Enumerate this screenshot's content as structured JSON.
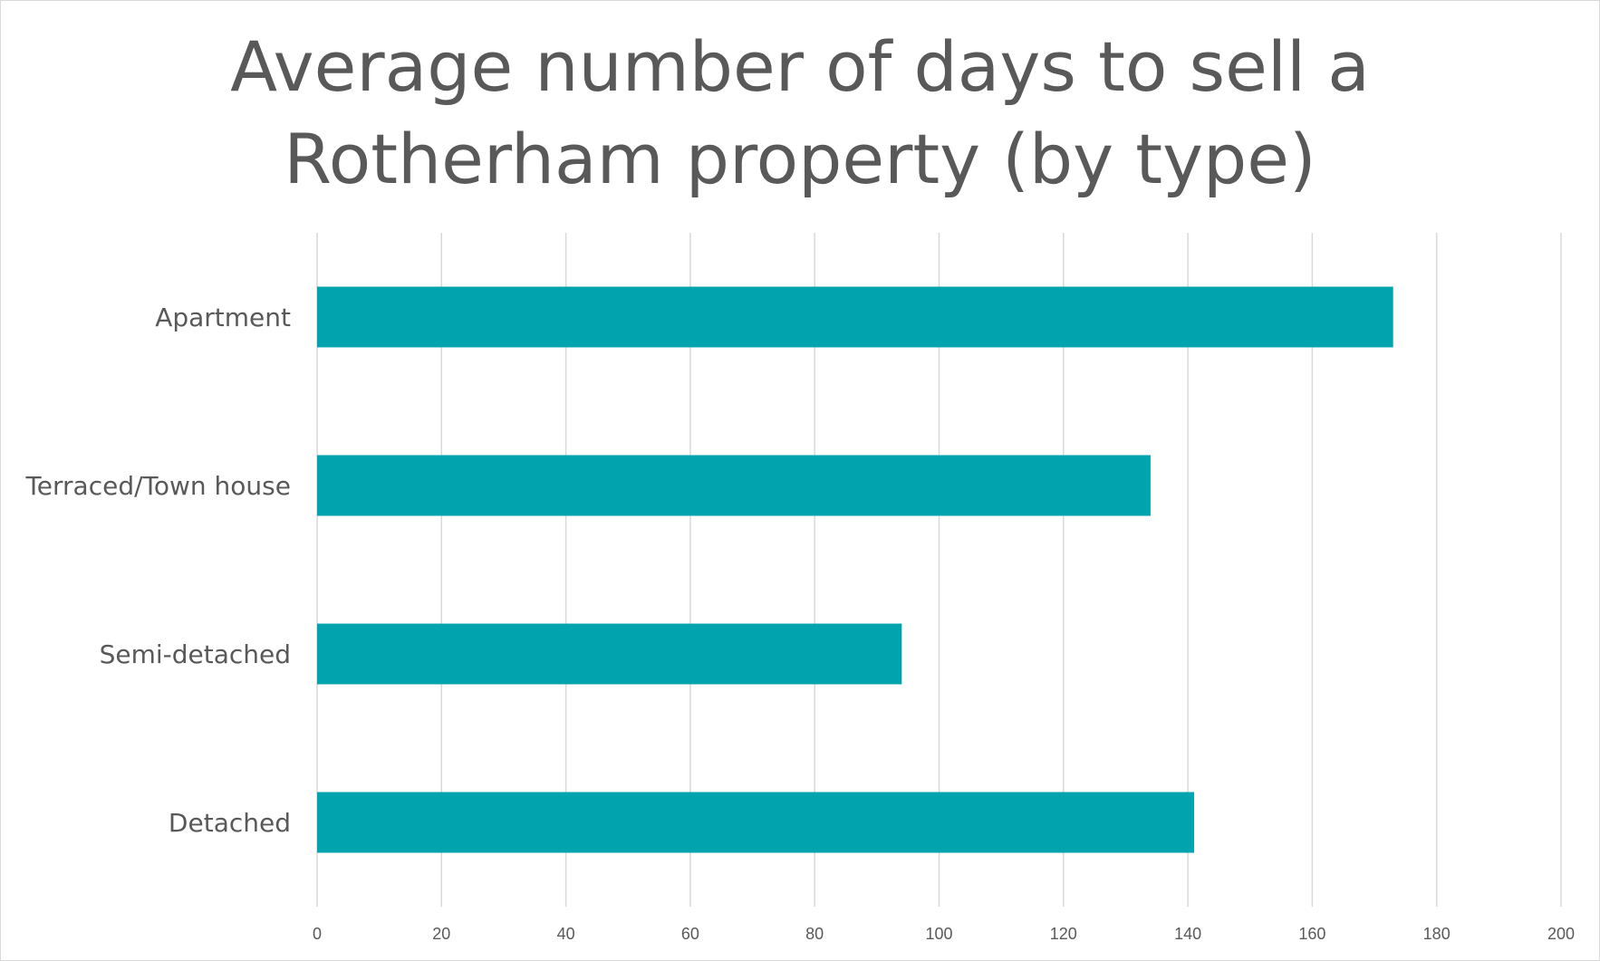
{
  "chart_data": {
    "type": "bar",
    "orientation": "horizontal",
    "title": "Average number of days to sell a Rotherham property (by type)",
    "title_lines": [
      "Average number of days to sell a",
      "Rotherham property (by type)"
    ],
    "categories": [
      "Apartment",
      "Terraced/Town house",
      "Semi-detached",
      "Detached"
    ],
    "values": [
      173,
      134,
      94,
      141
    ],
    "xlim": [
      0,
      200
    ],
    "x_ticks": [
      0,
      20,
      40,
      60,
      80,
      100,
      120,
      140,
      160,
      180,
      200
    ],
    "grid": true,
    "legend": "none",
    "bar_color": "#00a3ae",
    "text_color": "#595959",
    "grid_color": "#d9d9d9"
  }
}
